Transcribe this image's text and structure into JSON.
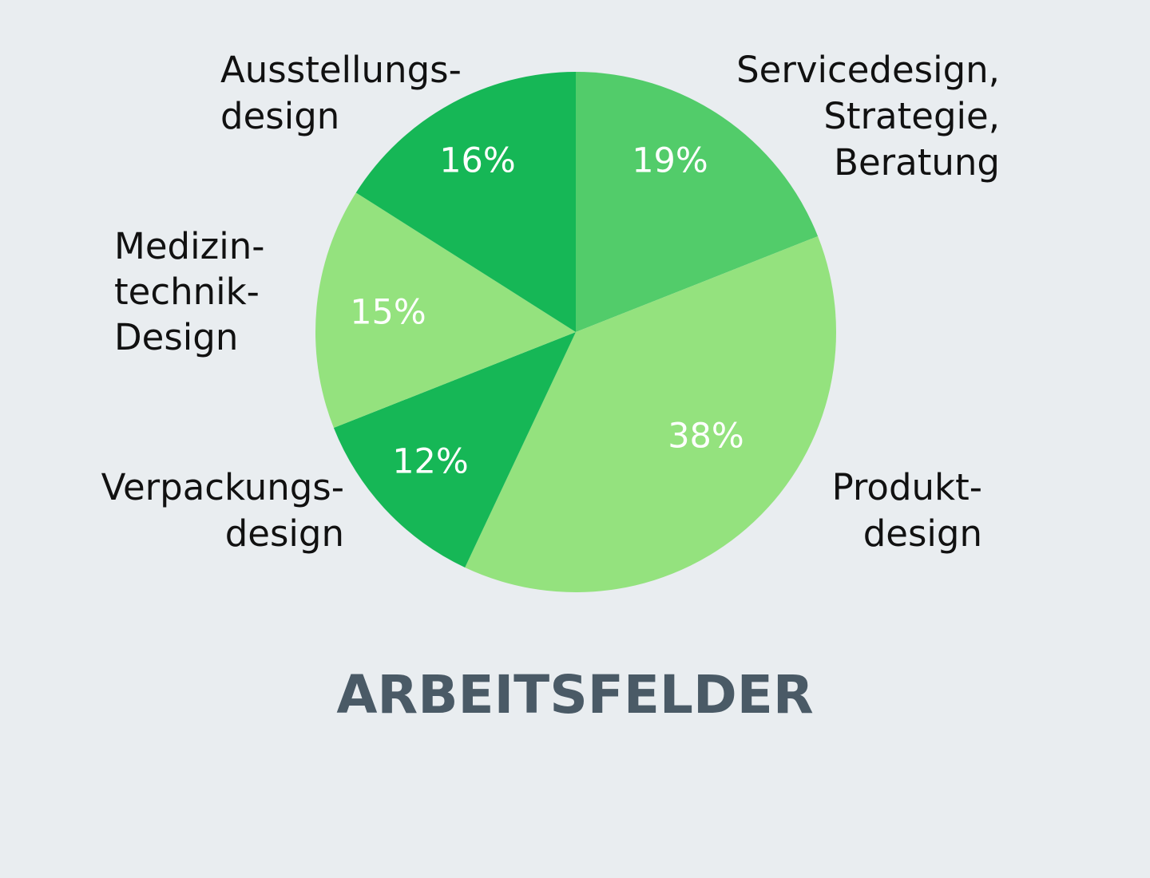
{
  "chart_data": {
    "type": "pie",
    "title": "ARBEITSFELDER",
    "start": "12 o'clock",
    "direction": "clockwise",
    "slices": [
      {
        "label_lines": [
          "Servicedesign,",
          "Strategie,",
          "Beratung"
        ],
        "value": 19,
        "value_label": "19%",
        "color": "#52cc6a"
      },
      {
        "label_lines": [
          "Produkt-",
          "design"
        ],
        "value": 38,
        "value_label": "38%",
        "color": "#94e27e"
      },
      {
        "label_lines": [
          "Verpackungs-",
          "design"
        ],
        "value": 12,
        "value_label": "12%",
        "color": "#16b756"
      },
      {
        "label_lines": [
          "Medizin-",
          "technik-",
          "Design"
        ],
        "value": 15,
        "value_label": "15%",
        "color": "#94e27e"
      },
      {
        "label_lines": [
          "Ausstellungs-",
          "design"
        ],
        "value": 16,
        "value_label": "16%",
        "color": "#16b756"
      }
    ]
  }
}
